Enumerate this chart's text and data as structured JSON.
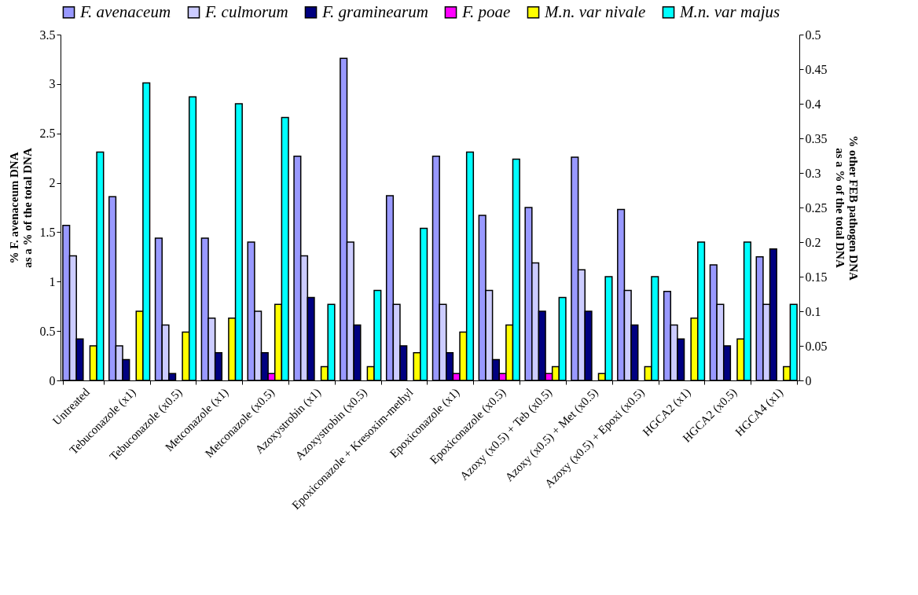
{
  "chart_data": {
    "type": "bar",
    "ylabel": "% F. avenaceum  DNA\nas a % of the total DNA",
    "y2label": "% other FEB pathogen DNA\nas a % of the total DNA",
    "categories": [
      "Untreated",
      "Tebuconazole (x1)",
      "Tebuconazole (x0.5)",
      "Metconazole (x1)",
      "Metconazole (x0.5)",
      "Azoxystrobin (x1)",
      "Azoxystrobin (x0.5)",
      "Epoxiconazole + Kresoxim-methyl",
      "Epoxiconazole (x1)",
      "Epoxiconazole (x0.5)",
      "Azoxy (x0.5) + Teb (x0.5)",
      "Azoxy (x0.5) + Met (x0.5)",
      "Azoxy (x0.5) + Epoxi (x0.5)",
      "HGCA2 (x1)",
      "HGCA2 (x0.5)",
      "HGCA4 (x1)"
    ],
    "series": [
      {
        "name": "F. avenaceum",
        "color": "#9999ff",
        "values": [
          1.57,
          1.86,
          1.44,
          1.44,
          1.4,
          2.27,
          3.26,
          1.87,
          2.27,
          1.67,
          1.75,
          2.26,
          1.73,
          0.9,
          1.17,
          1.25
        ]
      },
      {
        "name": "F. culmorum",
        "color": "#ccccff",
        "axis": "y2",
        "values": [
          0.18,
          0.05,
          0.08,
          0.09,
          0.1,
          0.18,
          0.2,
          0.11,
          0.11,
          0.13,
          0.17,
          0.16,
          0.13,
          0.08,
          0.11,
          0.11
        ]
      },
      {
        "name": "F. graminearum",
        "color": "#000080",
        "axis": "y2",
        "values": [
          0.06,
          0.03,
          0.01,
          0.04,
          0.04,
          0.12,
          0.08,
          0.05,
          0.04,
          0.03,
          0.1,
          0.1,
          0.08,
          0.06,
          0.05,
          0.19
        ]
      },
      {
        "name": "F. poae",
        "color": "#ff00ff",
        "axis": "y2",
        "values": [
          null,
          null,
          null,
          null,
          0.01,
          null,
          null,
          null,
          0.01,
          0.01,
          0.01,
          null,
          null,
          null,
          null,
          null
        ]
      },
      {
        "name": "M.n. var nivale",
        "color": "#ffff00",
        "axis": "y2",
        "values": [
          0.05,
          0.1,
          0.07,
          0.09,
          0.11,
          0.02,
          0.02,
          0.04,
          0.07,
          0.08,
          0.02,
          0.01,
          0.02,
          0.09,
          0.06,
          0.02
        ]
      },
      {
        "name": "M.n. var majus",
        "color": "#00ffff",
        "axis": "y2",
        "values": [
          0.33,
          0.43,
          0.41,
          0.4,
          0.38,
          0.11,
          0.13,
          0.22,
          0.33,
          0.32,
          0.12,
          0.15,
          0.15,
          0.2,
          0.2,
          0.11
        ]
      }
    ],
    "ylim": [
      0,
      3.5
    ],
    "yticks": [
      0,
      0.5,
      1,
      1.5,
      2,
      2.5,
      3,
      3.5
    ],
    "y2lim": [
      0,
      0.5
    ],
    "y2ticks": [
      0,
      0.05,
      0.1,
      0.15,
      0.2,
      0.25,
      0.3,
      0.35,
      0.4,
      0.45,
      0.5
    ],
    "legend": "top",
    "grid": false
  }
}
